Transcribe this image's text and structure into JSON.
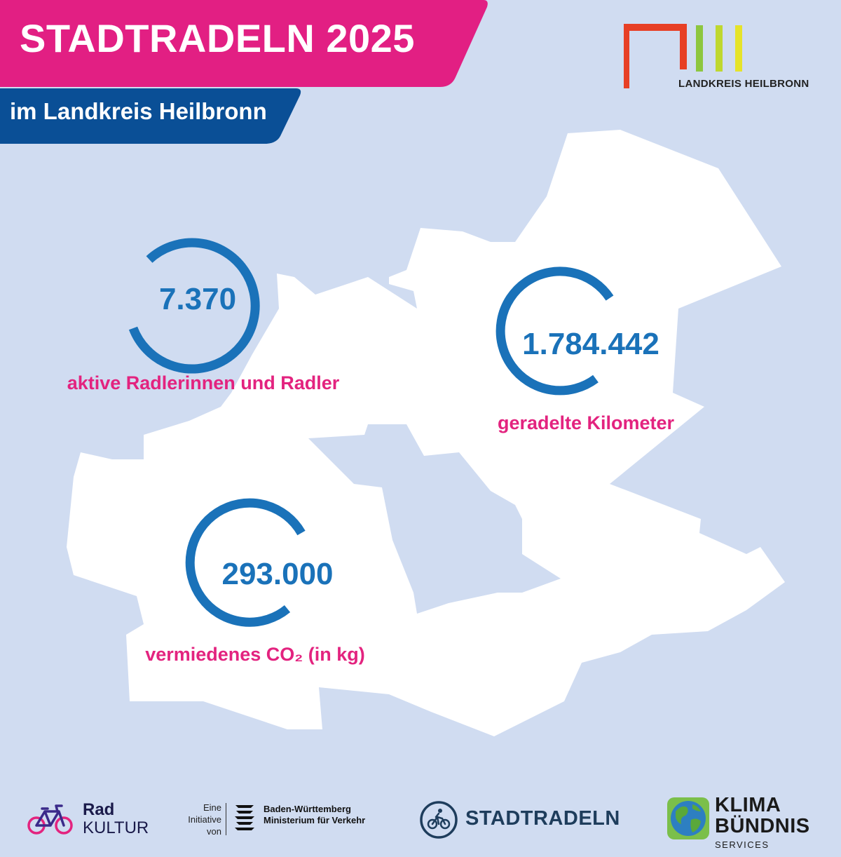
{
  "header": {
    "title": "STADTRADELN 2025",
    "subtitle": "im Landkreis Heilbronn"
  },
  "logo": {
    "text": "LANDKREIS HEILBRONN",
    "colors": [
      "#e73f25",
      "#8dc63f",
      "#bfd730",
      "#e5e32a"
    ]
  },
  "stats": [
    {
      "value": "7.370",
      "label": "aktive Radlerinnen und Radler"
    },
    {
      "value": "1.784.442",
      "label": "geradelte Kilometer"
    },
    {
      "value": "293.000",
      "label": "vermiedenes CO₂ (in kg)"
    }
  ],
  "footer": {
    "radkultur": {
      "line1": "Rad",
      "line2": "KULTUR"
    },
    "initiative": {
      "prefix": [
        "Eine",
        "Initiative",
        "von"
      ],
      "line1": "Baden-Württemberg",
      "line2": "Ministerium für Verkehr"
    },
    "stadtradeln": "STADTRADELN",
    "klima": {
      "line1": "KLIMA",
      "line2": "BÜNDNIS",
      "line3": "SERVICES"
    }
  },
  "colors": {
    "background": "#d0dcf1",
    "magenta": "#e3237f",
    "blue": "#1a72b9",
    "navy": "#0a4f96"
  }
}
